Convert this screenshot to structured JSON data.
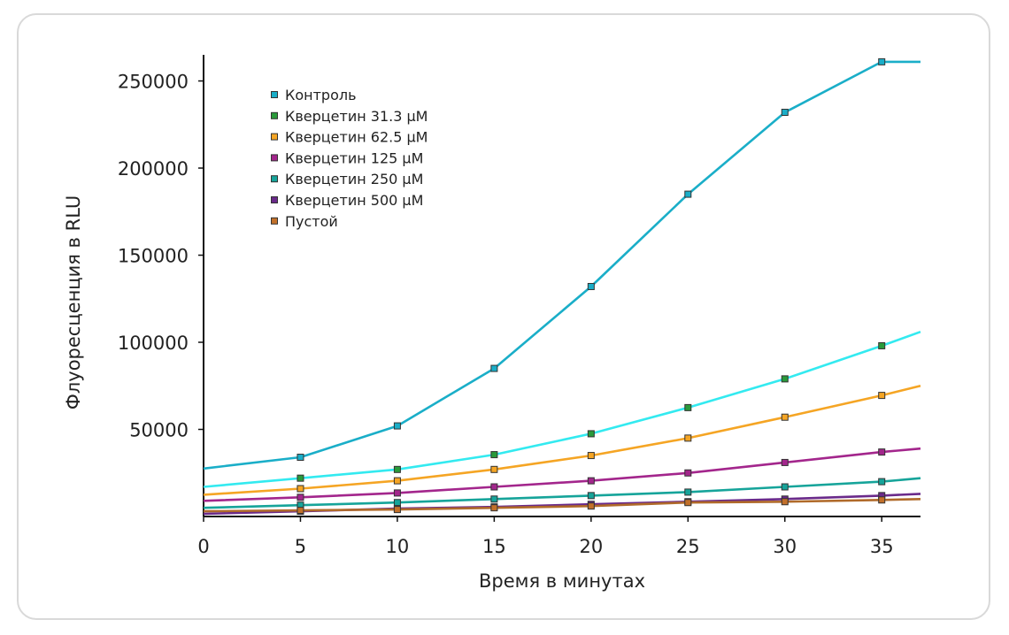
{
  "chart_data": {
    "type": "line",
    "title": "",
    "xlabel": "Время в минутах",
    "ylabel": "Флуоресценция в RLU",
    "xlim": [
      0,
      37
    ],
    "ylim": [
      0,
      265000
    ],
    "xticks": [
      0,
      5,
      10,
      15,
      20,
      25,
      30,
      35
    ],
    "yticks": [
      50000,
      100000,
      150000,
      200000,
      250000
    ],
    "legend_position": "top-left",
    "grid": false,
    "series": [
      {
        "name": "Контроль",
        "color": "#1aaec8",
        "marker_color": "#1aaec8",
        "x": [
          0,
          5,
          10,
          15,
          20,
          25,
          30,
          35,
          37
        ],
        "y": [
          27500,
          34000,
          52000,
          85000,
          132000,
          185000,
          232000,
          261000,
          261000
        ]
      },
      {
        "name": "Кверцетин 31.3 µM",
        "color": "#33eaf0",
        "marker_color": "#2a9a3a",
        "x": [
          0,
          5,
          10,
          15,
          20,
          25,
          30,
          35,
          37
        ],
        "y": [
          17000,
          22000,
          27000,
          35500,
          47500,
          62500,
          79000,
          98000,
          106000
        ]
      },
      {
        "name": "Кверцетин 62.5 µM",
        "color": "#f5a524",
        "marker_color": "#f5a524",
        "x": [
          0,
          5,
          10,
          15,
          20,
          25,
          30,
          35,
          37
        ],
        "y": [
          12500,
          16000,
          20500,
          27000,
          35000,
          45000,
          57000,
          69500,
          75000
        ]
      },
      {
        "name": "Кверцетин 125 µM",
        "color": "#a3268c",
        "marker_color": "#a3268c",
        "x": [
          0,
          5,
          10,
          15,
          20,
          25,
          30,
          35,
          37
        ],
        "y": [
          9000,
          11000,
          13500,
          17000,
          20500,
          25000,
          31000,
          37000,
          39000
        ]
      },
      {
        "name": "Кверцетин 250 µM",
        "color": "#16a49a",
        "marker_color": "#16a49a",
        "x": [
          0,
          5,
          10,
          15,
          20,
          25,
          30,
          35,
          37
        ],
        "y": [
          5000,
          6500,
          8000,
          10000,
          12000,
          14000,
          17000,
          20000,
          22000
        ]
      },
      {
        "name": "Кверцетин 500 µM",
        "color": "#6a2a8a",
        "marker_color": "#6a2a8a",
        "x": [
          0,
          5,
          10,
          15,
          20,
          25,
          30,
          35,
          37
        ],
        "y": [
          1500,
          3000,
          4500,
          5500,
          7000,
          8500,
          10000,
          12000,
          13000
        ]
      },
      {
        "name": "Пустой",
        "color": "#b06a2a",
        "marker_color": "#c2702a",
        "x": [
          0,
          5,
          10,
          15,
          20,
          25,
          30,
          35,
          37
        ],
        "y": [
          3000,
          3500,
          4000,
          5000,
          6000,
          8000,
          8500,
          9500,
          10000
        ]
      }
    ]
  }
}
